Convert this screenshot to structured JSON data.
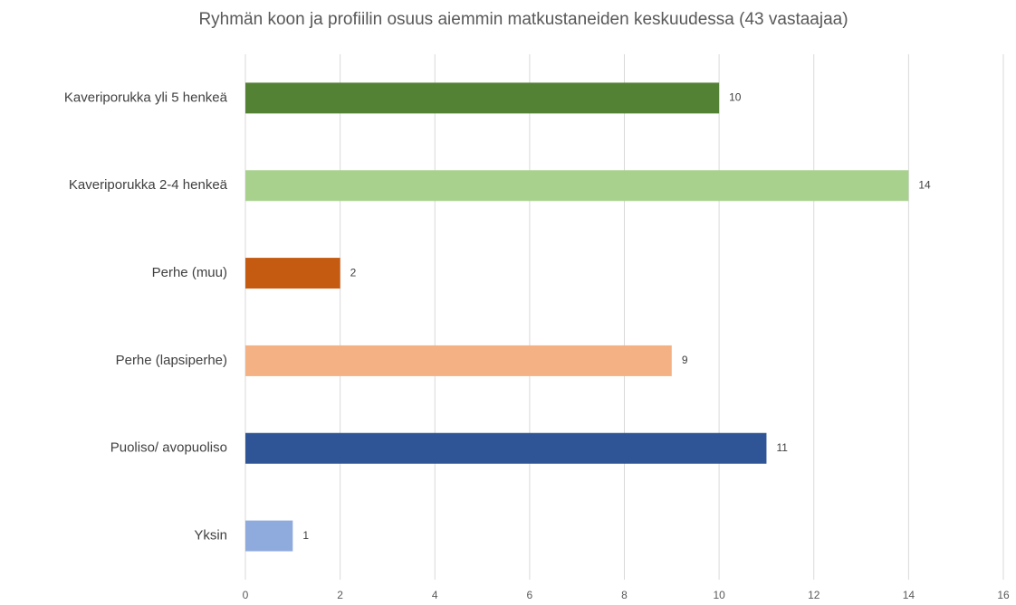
{
  "chart_data": {
    "type": "bar",
    "orientation": "horizontal",
    "title": "Ryhmän koon ja profiilin osuus aiemmin matkustaneiden keskuudessa (43 vastaajaa)",
    "categories": [
      "Kaveriporukka yli 5 henkeä",
      "Kaveriporukka 2-4 henkeä",
      "Perhe (muu)",
      "Perhe (lapsiperhe)",
      "Puoliso/ avopuoliso",
      "Yksin"
    ],
    "values": [
      10,
      14,
      2,
      9,
      11,
      1
    ],
    "colors": [
      "#548235",
      "#a9d18e",
      "#c55a11",
      "#f4b183",
      "#2f5597",
      "#8faadc"
    ],
    "xlim": [
      0,
      16
    ],
    "xticks": [
      0,
      2,
      4,
      6,
      8,
      10,
      12,
      14,
      16
    ],
    "grid": true
  }
}
